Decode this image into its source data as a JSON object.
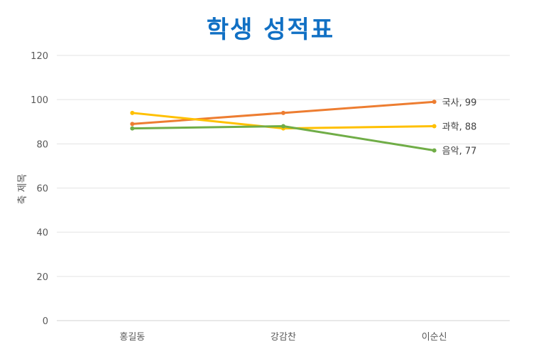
{
  "chart_data": {
    "type": "line",
    "title": "학생 성적표",
    "xlabel": "",
    "ylabel": "축 제목",
    "ylim": [
      0,
      120
    ],
    "yticks": [
      0,
      20,
      40,
      60,
      80,
      100,
      120
    ],
    "grid": true,
    "categories": [
      "홍길동",
      "강감찬",
      "이순신"
    ],
    "series": [
      {
        "name": "국사",
        "color": "#ED7D31",
        "values": [
          89,
          94,
          99
        ],
        "end_label": "국사, 99"
      },
      {
        "name": "과학",
        "color": "#FFC000",
        "values": [
          94,
          87,
          88
        ],
        "end_label": "과학, 88"
      },
      {
        "name": "음악",
        "color": "#70AD47",
        "values": [
          87,
          88,
          77
        ],
        "end_label": "음악, 77"
      }
    ]
  }
}
